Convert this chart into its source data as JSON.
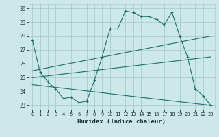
{
  "xlabel": "Humidex (Indice chaleur)",
  "ylabel": "",
  "background_color": "#cce8e8",
  "grid_color": "#aacccc",
  "line_color": "#1a6e6e",
  "xlim": [
    -0.5,
    23.5
  ],
  "ylim": [
    22.7,
    30.3
  ],
  "xticks": [
    0,
    1,
    2,
    3,
    4,
    5,
    6,
    7,
    8,
    9,
    10,
    11,
    12,
    13,
    14,
    15,
    16,
    17,
    18,
    19,
    20,
    21,
    22,
    23
  ],
  "yticks": [
    23,
    24,
    25,
    26,
    27,
    28,
    29,
    30
  ],
  "series1_x": [
    0,
    1,
    2,
    3,
    4,
    5,
    6,
    7,
    8,
    9,
    10,
    11,
    12,
    13,
    14,
    15,
    16,
    17,
    18,
    19,
    20,
    21,
    22,
    23
  ],
  "series1_y": [
    27.7,
    25.4,
    24.7,
    24.2,
    23.5,
    23.6,
    23.2,
    23.3,
    24.8,
    26.5,
    28.5,
    28.5,
    29.8,
    29.7,
    29.4,
    29.4,
    29.2,
    28.8,
    29.7,
    28.0,
    26.5,
    24.2,
    23.7,
    23.0
  ],
  "series2_x": [
    0,
    23
  ],
  "series2_y": [
    25.5,
    28.0
  ],
  "series3_x": [
    0,
    23
  ],
  "series3_y": [
    25.0,
    26.5
  ],
  "series4_x": [
    0,
    23
  ],
  "series4_y": [
    24.5,
    23.0
  ]
}
